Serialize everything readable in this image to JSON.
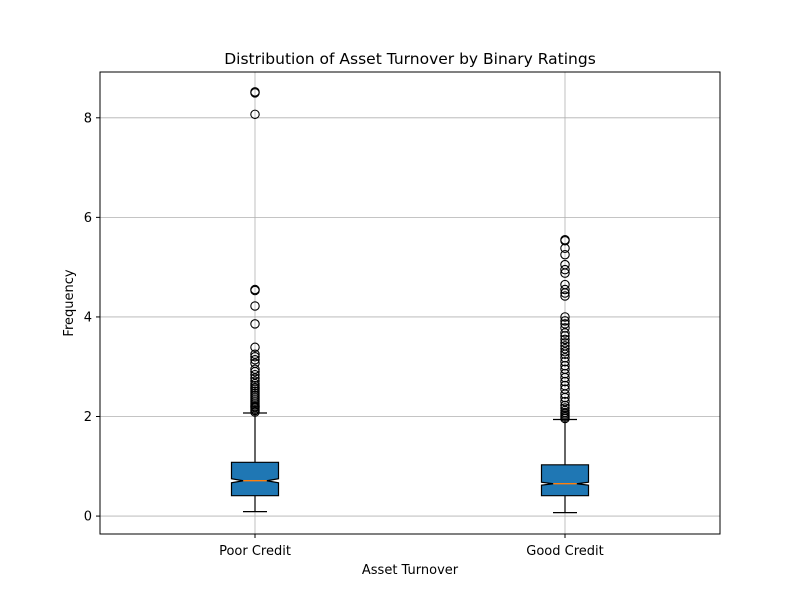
{
  "chart_data": {
    "type": "boxplot",
    "title": "Distribution of Asset Turnover by Binary Ratings",
    "xlabel": "Asset Turnover",
    "ylabel": "Frequency",
    "categories": [
      "Poor Credit",
      "Good Credit"
    ],
    "ylim": [
      -0.36,
      8.92
    ],
    "yticks": [
      0,
      2,
      4,
      6,
      8
    ],
    "grid": true,
    "notched": true,
    "box_color": "#1f77b4",
    "median_color": "#ff7f0e",
    "boxes": [
      {
        "name": "Poor Credit",
        "whisker_low": 0.09,
        "q1": 0.41,
        "median": 0.71,
        "q3": 1.08,
        "whisker_high": 2.07,
        "notch_low": 0.67,
        "notch_high": 0.75,
        "fliers": [
          2.09,
          2.12,
          2.15,
          2.18,
          2.2,
          2.23,
          2.27,
          2.31,
          2.35,
          2.39,
          2.43,
          2.47,
          2.51,
          2.55,
          2.58,
          2.62,
          2.66,
          2.71,
          2.77,
          2.84,
          2.9,
          2.95,
          3.07,
          3.14,
          3.2,
          3.25,
          3.39,
          3.86,
          4.22,
          4.53,
          4.55,
          8.07,
          8.5,
          8.52
        ]
      },
      {
        "name": "Good Credit",
        "whisker_low": 0.07,
        "q1": 0.41,
        "median": 0.65,
        "q3": 1.03,
        "whisker_high": 1.94,
        "notch_low": 0.62,
        "notch_high": 0.68,
        "fliers": [
          1.96,
          1.99,
          2.02,
          2.05,
          2.08,
          2.12,
          2.17,
          2.22,
          2.3,
          2.38,
          2.45,
          2.55,
          2.62,
          2.7,
          2.78,
          2.86,
          2.95,
          3.02,
          3.1,
          3.18,
          3.25,
          3.3,
          3.36,
          3.42,
          3.48,
          3.55,
          3.62,
          3.68,
          3.78,
          3.86,
          3.92,
          4.0,
          4.42,
          4.48,
          4.55,
          4.65,
          4.88,
          4.95,
          5.05,
          5.25,
          5.38,
          5.53,
          5.55
        ]
      }
    ]
  }
}
